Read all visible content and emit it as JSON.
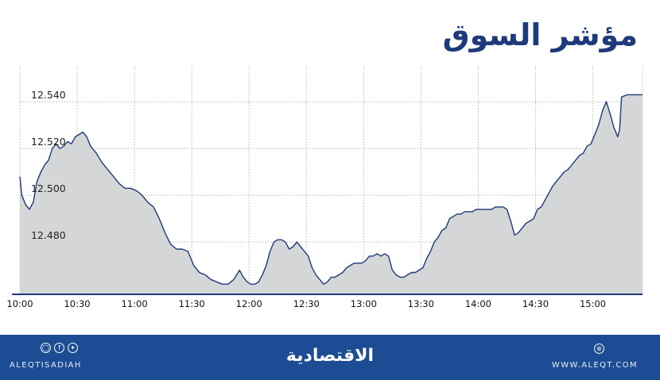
{
  "title": "مؤشر السوق",
  "footer": {
    "handle": "ALEQTISADIAH",
    "brand": "الاقتصادية",
    "site": "WWW.ALEQT.COM",
    "social_icons": [
      "instagram-icon",
      "facebook-icon",
      "twitter-icon"
    ],
    "web_icon": "globe-icon"
  },
  "colors": {
    "title": "#1d3a7a",
    "line": "#1d3a7a",
    "area": "#d5d6d8",
    "footer": "#1c4c94",
    "grid": "#b8b8b8"
  },
  "chart_data": {
    "type": "area",
    "title": "مؤشر السوق",
    "xlabel": "",
    "ylabel": "",
    "x_ticks": [
      "10:00",
      "10:30",
      "11:00",
      "11:30",
      "12:00",
      "12:30",
      "13:00",
      "13:30",
      "14:00",
      "14:30",
      "15:00"
    ],
    "y_ticks": [
      12540,
      12520,
      12500,
      12480
    ],
    "y_tick_labels": [
      "12.540",
      "12.520",
      "12.500",
      "12.480"
    ],
    "xlim_minutes_after_10": [
      0,
      326
    ],
    "ylim": [
      12458,
      12555
    ],
    "grid": true,
    "series": [
      {
        "values": [
          [
            0,
            12508
          ],
          [
            1,
            12500
          ],
          [
            3,
            12496
          ],
          [
            5,
            12494
          ],
          [
            7,
            12497
          ],
          [
            9,
            12506
          ],
          [
            11,
            12510
          ],
          [
            13,
            12513
          ],
          [
            15,
            12515
          ],
          [
            17,
            12520
          ],
          [
            19,
            12522
          ],
          [
            21,
            12520
          ],
          [
            23,
            12521
          ],
          [
            25,
            12523
          ],
          [
            27,
            12522
          ],
          [
            29,
            12525
          ],
          [
            31,
            12526
          ],
          [
            33,
            12527
          ],
          [
            35,
            12525
          ],
          [
            37,
            12521
          ],
          [
            40,
            12518
          ],
          [
            43,
            12514
          ],
          [
            46,
            12511
          ],
          [
            49,
            12508
          ],
          [
            52,
            12505
          ],
          [
            55,
            12503
          ],
          [
            58,
            12503
          ],
          [
            61,
            12502
          ],
          [
            64,
            12500
          ],
          [
            67,
            12497
          ],
          [
            70,
            12495
          ],
          [
            73,
            12490
          ],
          [
            76,
            12484
          ],
          [
            79,
            12479
          ],
          [
            82,
            12477
          ],
          [
            85,
            12477
          ],
          [
            88,
            12476
          ],
          [
            91,
            12470
          ],
          [
            94,
            12467
          ],
          [
            97,
            12466
          ],
          [
            100,
            12464
          ],
          [
            103,
            12463
          ],
          [
            106,
            12462
          ],
          [
            109,
            12462
          ],
          [
            112,
            12464
          ],
          [
            115,
            12468
          ],
          [
            117,
            12465
          ],
          [
            119,
            12463
          ],
          [
            121,
            12462
          ],
          [
            123,
            12462
          ],
          [
            125,
            12463
          ],
          [
            127,
            12466
          ],
          [
            129,
            12470
          ],
          [
            131,
            12476
          ],
          [
            133,
            12480
          ],
          [
            135,
            12481
          ],
          [
            137,
            12481
          ],
          [
            139,
            12480
          ],
          [
            141,
            12477
          ],
          [
            143,
            12478
          ],
          [
            145,
            12480
          ],
          [
            147,
            12478
          ],
          [
            149,
            12476
          ],
          [
            151,
            12474
          ],
          [
            153,
            12469
          ],
          [
            155,
            12466
          ],
          [
            157,
            12464
          ],
          [
            159,
            12462
          ],
          [
            161,
            12463
          ],
          [
            163,
            12465
          ],
          [
            165,
            12465
          ],
          [
            167,
            12466
          ],
          [
            169,
            12467
          ],
          [
            171,
            12469
          ],
          [
            173,
            12470
          ],
          [
            175,
            12471
          ],
          [
            177,
            12471
          ],
          [
            179,
            12471
          ],
          [
            181,
            12472
          ],
          [
            183,
            12474
          ],
          [
            185,
            12474
          ],
          [
            187,
            12475
          ],
          [
            189,
            12474
          ],
          [
            191,
            12475
          ],
          [
            193,
            12474
          ],
          [
            195,
            12468
          ],
          [
            197,
            12466
          ],
          [
            199,
            12465
          ],
          [
            201,
            12465
          ],
          [
            203,
            12466
          ],
          [
            205,
            12467
          ],
          [
            207,
            12467
          ],
          [
            209,
            12468
          ],
          [
            211,
            12469
          ],
          [
            213,
            12473
          ],
          [
            215,
            12476
          ],
          [
            217,
            12480
          ],
          [
            219,
            12482
          ],
          [
            221,
            12485
          ],
          [
            223,
            12486
          ],
          [
            225,
            12490
          ],
          [
            227,
            12491
          ],
          [
            229,
            12492
          ],
          [
            231,
            12492
          ],
          [
            233,
            12493
          ],
          [
            235,
            12493
          ],
          [
            237,
            12493
          ],
          [
            239,
            12494
          ],
          [
            241,
            12494
          ],
          [
            243,
            12494
          ],
          [
            245,
            12494
          ],
          [
            247,
            12494
          ],
          [
            249,
            12495
          ],
          [
            251,
            12495
          ],
          [
            253,
            12495
          ],
          [
            255,
            12494
          ],
          [
            257,
            12489
          ],
          [
            259,
            12483
          ],
          [
            261,
            12484
          ],
          [
            263,
            12486
          ],
          [
            265,
            12488
          ],
          [
            267,
            12489
          ],
          [
            269,
            12490
          ],
          [
            271,
            12494
          ],
          [
            273,
            12495
          ],
          [
            275,
            12498
          ],
          [
            277,
            12501
          ],
          [
            279,
            12504
          ],
          [
            281,
            12506
          ],
          [
            283,
            12508
          ],
          [
            285,
            12510
          ],
          [
            287,
            12511
          ],
          [
            289,
            12513
          ],
          [
            291,
            12515
          ],
          [
            293,
            12517
          ],
          [
            295,
            12518
          ],
          [
            297,
            12521
          ],
          [
            299,
            12522
          ],
          [
            301,
            12526
          ],
          [
            303,
            12530
          ],
          [
            305,
            12536
          ],
          [
            307,
            12540
          ],
          [
            309,
            12535
          ],
          [
            311,
            12529
          ],
          [
            313,
            12525
          ],
          [
            314,
            12528
          ],
          [
            315,
            12542
          ],
          [
            318,
            12543
          ],
          [
            322,
            12543
          ],
          [
            326,
            12543
          ]
        ]
      }
    ]
  }
}
